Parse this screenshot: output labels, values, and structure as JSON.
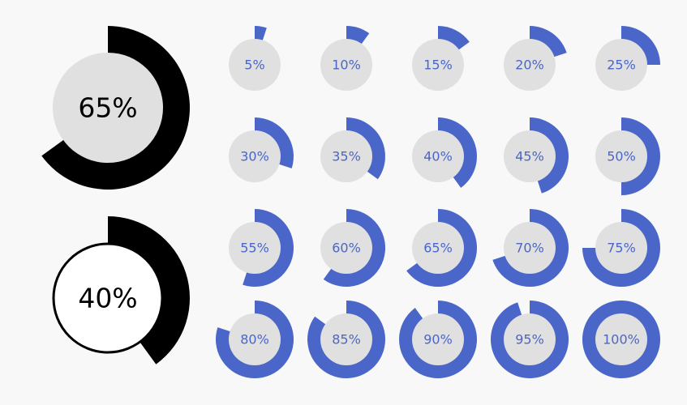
{
  "colors": {
    "background": "#f8f8f8",
    "accent": "#4a66c8",
    "inner": "#e0e0e0",
    "big_ring": "#000000",
    "label_small": "#4a66c8",
    "label_big": "#000000"
  },
  "big_progress": [
    {
      "label": "65%",
      "fraction": 0.65,
      "style": "gray-filled"
    },
    {
      "label": "40%",
      "fraction": 0.4,
      "style": "white-outlined"
    }
  ],
  "small_progress": [
    {
      "label": "5%",
      "fraction": 0.05
    },
    {
      "label": "10%",
      "fraction": 0.1
    },
    {
      "label": "15%",
      "fraction": 0.15
    },
    {
      "label": "20%",
      "fraction": 0.2
    },
    {
      "label": "25%",
      "fraction": 0.25
    },
    {
      "label": "30%",
      "fraction": 0.3
    },
    {
      "label": "35%",
      "fraction": 0.35
    },
    {
      "label": "40%",
      "fraction": 0.4
    },
    {
      "label": "45%",
      "fraction": 0.45
    },
    {
      "label": "50%",
      "fraction": 0.5
    },
    {
      "label": "55%",
      "fraction": 0.55
    },
    {
      "label": "60%",
      "fraction": 0.6
    },
    {
      "label": "65%",
      "fraction": 0.65
    },
    {
      "label": "70%",
      "fraction": 0.7
    },
    {
      "label": "75%",
      "fraction": 0.75
    },
    {
      "label": "80%",
      "fraction": 0.8
    },
    {
      "label": "85%",
      "fraction": 0.85
    },
    {
      "label": "90%",
      "fraction": 0.9
    },
    {
      "label": "95%",
      "fraction": 0.95
    },
    {
      "label": "100%",
      "fraction": 1.0
    }
  ]
}
